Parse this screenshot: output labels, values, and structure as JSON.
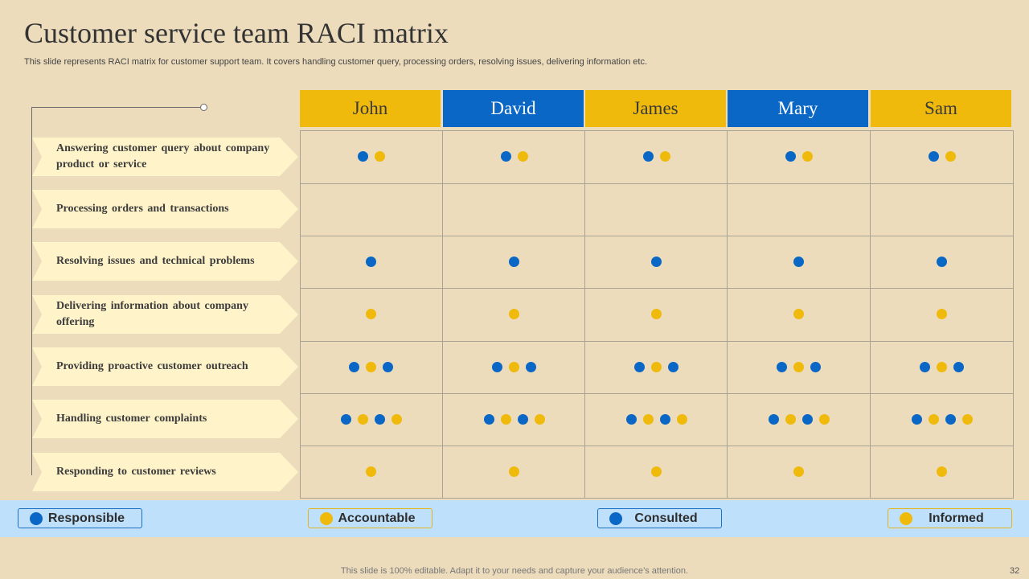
{
  "slide": {
    "title": "Customer service team RACI matrix",
    "subtitle": "This slide represents RACI matrix for customer support team. It covers handling customer query, processing orders, resolving issues, delivering information etc.",
    "footer": "This slide is 100% editable. Adapt it to your needs and capture your audience’s attention.",
    "page_number": "32"
  },
  "colors": {
    "blue": "#0a67c6",
    "yellow": "#efba0b",
    "background": "#ecdcbc",
    "task_fill": "#fff3c9",
    "legend_band": "#bfe0fb"
  },
  "members": [
    {
      "name": "John",
      "color": "yellow"
    },
    {
      "name": "David",
      "color": "blue"
    },
    {
      "name": "James",
      "color": "yellow"
    },
    {
      "name": "Mary",
      "color": "blue"
    },
    {
      "name": "Sam",
      "color": "yellow"
    }
  ],
  "tasks": [
    {
      "label": "Answering customer query about company product or service",
      "roles": [
        "R",
        "A"
      ]
    },
    {
      "label": "Processing orders and transactions",
      "roles": []
    },
    {
      "label": "Resolving issues and technical problems",
      "roles": [
        "R"
      ]
    },
    {
      "label": "Delivering information about company offering",
      "roles": [
        "A"
      ]
    },
    {
      "label": "Providing proactive customer outreach",
      "roles": [
        "R",
        "A",
        "C"
      ]
    },
    {
      "label": "Handling customer complaints",
      "roles": [
        "R",
        "A",
        "C",
        "I"
      ]
    },
    {
      "label": "Responding to customer reviews",
      "roles": [
        "A"
      ]
    }
  ],
  "legend": [
    {
      "key": "R",
      "label": "Responsible",
      "color": "blue"
    },
    {
      "key": "A",
      "label": "Accountable",
      "color": "yellow"
    },
    {
      "key": "C",
      "label": "Consulted",
      "color": "blue"
    },
    {
      "key": "I",
      "label": "Informed",
      "color": "yellow"
    }
  ]
}
